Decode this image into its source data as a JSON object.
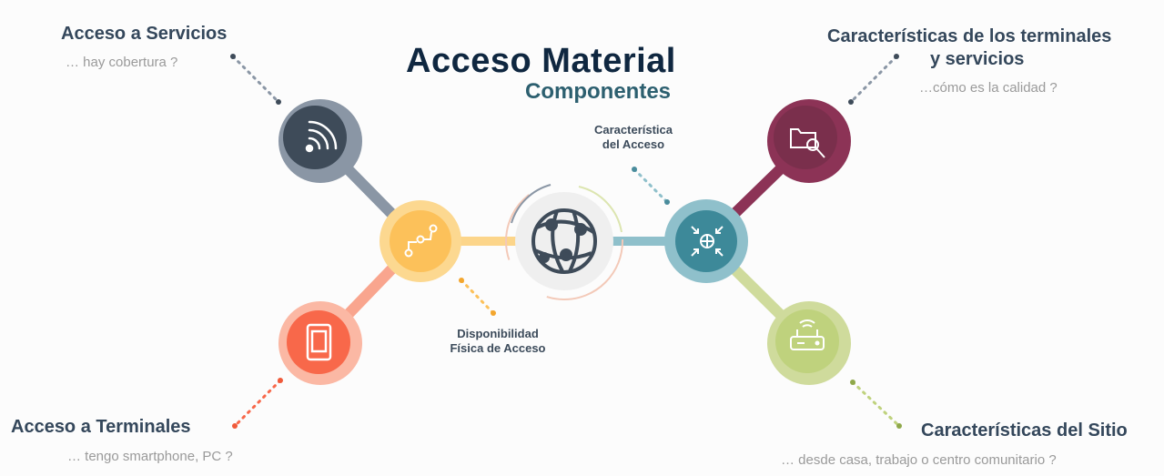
{
  "title": "Acceso Material",
  "subtitle": "Componentes",
  "topLeft": {
    "heading": "Acceso a Servicios",
    "question": "… hay cobertura ?"
  },
  "bottomLeft": {
    "heading": "Acceso a Terminales",
    "question": "… tengo smartphone, PC ?"
  },
  "topRight": {
    "heading_line1": "Características de los terminales",
    "heading_line2": "y servicios",
    "question": "…cómo es la calidad ?"
  },
  "bottomRight": {
    "heading": "Características del Sitio",
    "question": "… desde casa, trabajo o centro comunitario ?"
  },
  "centerTop": {
    "line1": "Característica",
    "line2": "del Acceso"
  },
  "centerBottom": {
    "line1": "Disponibilidad",
    "line2": "Física de Acceso"
  },
  "colors": {
    "gray": "#7f8b9a",
    "slate": "#3e4b59",
    "orange": "#fcc15a",
    "coral": "#f8684a",
    "teal": "#5fa5b4",
    "plum": "#8c3356",
    "olive": "#bfd27d"
  },
  "icons": [
    "wifi-signal-icon",
    "route-icon",
    "tablet-icon",
    "globe-network-icon",
    "globe-arrows-icon",
    "folder-search-icon",
    "router-icon"
  ]
}
